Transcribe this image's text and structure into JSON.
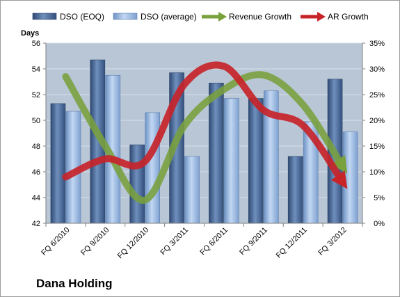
{
  "chart_data": {
    "type": "bar",
    "categories": [
      "FQ 6/2010",
      "FQ 9/2010",
      "FQ 12/2010",
      "FQ 3/2011",
      "FQ 6/2011",
      "FQ 9/2011",
      "FQ 12/2011",
      "FQ 3/2012"
    ],
    "series": [
      {
        "name": "DSO (EOQ)",
        "type": "bar",
        "axis": "left",
        "color": "#4a6896",
        "values": [
          51.3,
          54.7,
          48.1,
          53.7,
          52.9,
          51.7,
          47.2,
          53.2
        ]
      },
      {
        "name": "DSO (average)",
        "type": "bar",
        "axis": "left",
        "color": "#8fb1df",
        "values": [
          50.7,
          53.5,
          50.6,
          47.2,
          51.7,
          52.3,
          49.9,
          49.1
        ]
      },
      {
        "name": "Revenue Growth",
        "type": "line",
        "axis": "right",
        "color": "#79a13c",
        "values": [
          28.5,
          15.0,
          4.5,
          19.0,
          26.0,
          28.8,
          23.0,
          11.0
        ]
      },
      {
        "name": "AR Growth",
        "type": "line",
        "axis": "right",
        "color": "#c7242a",
        "values": [
          9.0,
          12.5,
          12.0,
          27.0,
          30.5,
          22.0,
          19.0,
          8.0
        ]
      }
    ],
    "ylabel": "Days",
    "ylim": [
      42,
      56
    ],
    "yticks": [
      "42",
      "44",
      "46",
      "48",
      "50",
      "52",
      "54",
      "56"
    ],
    "y2lim": [
      0,
      35
    ],
    "y2ticks": [
      "0%",
      "5%",
      "10%",
      "15%",
      "20%",
      "25%",
      "30%",
      "35%"
    ],
    "grid": true,
    "legend": "top",
    "company": "Dana Holding"
  }
}
